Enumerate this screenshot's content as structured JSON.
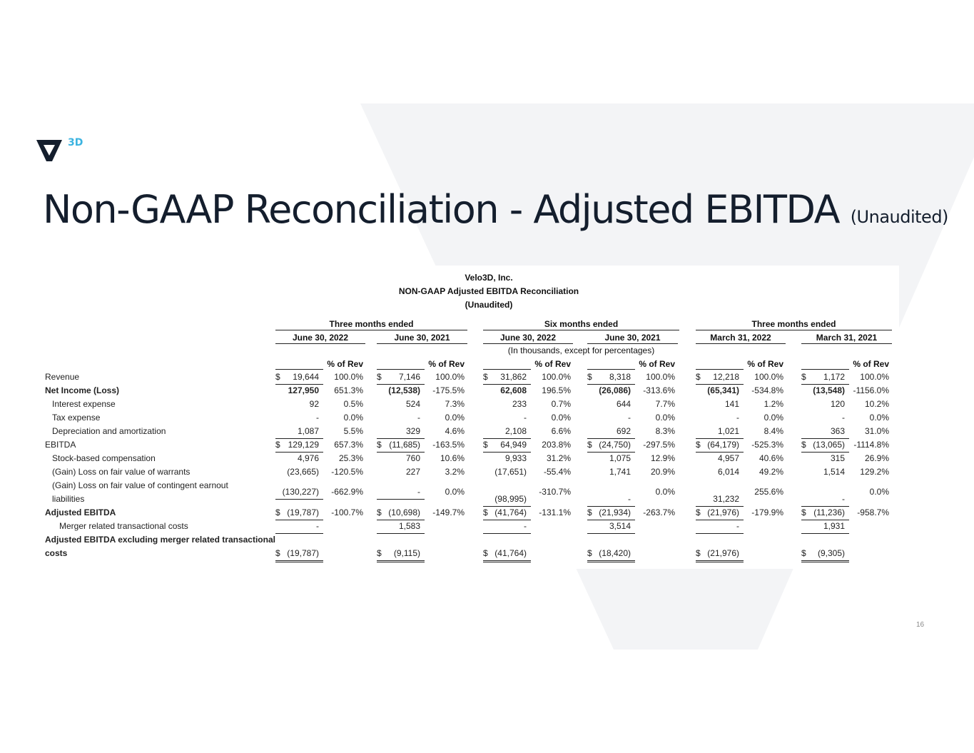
{
  "logo": {
    "text": "3D",
    "accent": "#3bb3e0",
    "mark_color": "#141e2d"
  },
  "title": {
    "main": "Non-GAAP Reconciliation - Adjusted EBITDA",
    "sub": "(Unaudited)"
  },
  "page_number": "16",
  "table": {
    "company": "Velo3D, Inc.",
    "heading": "NON-GAAP Adjusted EBITDA Reconciliation",
    "subheading": "(Unaudited)",
    "groups": [
      "Three months ended",
      "Six months ended",
      "Three months ended"
    ],
    "periods": [
      "June 30, 2022",
      "June 30, 2021",
      "June 30, 2022",
      "June 30, 2021",
      "March 31, 2022",
      "March 31, 2021"
    ],
    "units_note": "(In thousands, except for percentages)",
    "pct_header": "% of Rev",
    "rows": [
      {
        "label": "Revenue",
        "values": [
          "$ 19,644",
          "100.0%",
          "$ 7,146",
          "100.0%",
          "$ 31,862",
          "100.0%",
          "$ 8,318",
          "100.0%",
          "$ 12,218",
          "100.0%",
          "$ 1,172",
          "100.0%"
        ]
      },
      {
        "label": "Net Income (Loss)",
        "bold": true,
        "values": [
          "127,950",
          "651.3%",
          "(12,538)",
          "-175.5%",
          "62,608",
          "196.5%",
          "(26,086)",
          "-313.6%",
          "(65,341)",
          "-534.8%",
          "(13,548)",
          "-1156.0%"
        ]
      },
      {
        "label": "Interest expense",
        "indent": 1,
        "values": [
          "92",
          "0.5%",
          "524",
          "7.3%",
          "233",
          "0.7%",
          "644",
          "7.7%",
          "141",
          "1.2%",
          "120",
          "10.2%"
        ]
      },
      {
        "label": "Tax expense",
        "indent": 1,
        "values": [
          "-",
          "0.0%",
          "-",
          "0.0%",
          "-",
          "0.0%",
          "-",
          "0.0%",
          "-",
          "0.0%",
          "-",
          "0.0%"
        ]
      },
      {
        "label": "Depreciation and amortization",
        "indent": 1,
        "values": [
          "1,087",
          "5.5%",
          "329",
          "4.6%",
          "2,108",
          "6.6%",
          "692",
          "8.3%",
          "1,021",
          "8.4%",
          "363",
          "31.0%"
        ]
      },
      {
        "label": "EBITDA",
        "values": [
          "$ 129,129",
          "657.3%",
          "$ (11,685)",
          "-163.5%",
          "$ 64,949",
          "203.8%",
          "$ (24,750)",
          "-297.5%",
          "$ (64,179)",
          "-525.3%",
          "$ (13,065)",
          "-1114.8%"
        ]
      },
      {
        "label": "Stock-based compensation",
        "indent": 1,
        "values": [
          "4,976",
          "25.3%",
          "760",
          "10.6%",
          "9,933",
          "31.2%",
          "1,075",
          "12.9%",
          "4,957",
          "40.6%",
          "315",
          "26.9%"
        ]
      },
      {
        "label": "(Gain) Loss on fair value of warrants",
        "indent": 1,
        "values": [
          "(23,665)",
          "-120.5%",
          "227",
          "3.2%",
          "(17,651)",
          "-55.4%",
          "1,741",
          "20.9%",
          "6,014",
          "49.2%",
          "1,514",
          "129.2%"
        ]
      },
      {
        "label": "(Gain) Loss on fair value of contingent earnout liabilities",
        "label_lines": [
          "(Gain) Loss on fair value of contingent earnout",
          "liabilities"
        ],
        "indent": 1,
        "values": [
          "(130,227)",
          "-662.9%",
          "-",
          "0.0%",
          "(98,995)",
          "-310.7%",
          "-",
          "0.0%",
          "31,232",
          "255.6%",
          "-",
          "0.0%"
        ]
      },
      {
        "label": "Adjusted EBITDA",
        "bold": true,
        "values": [
          "$ (19,787)",
          "-100.7%",
          "$ (10,698)",
          "-149.7%",
          "$ (41,764)",
          "-131.1%",
          "$ (21,934)",
          "-263.7%",
          "$ (21,976)",
          "-179.9%",
          "$ (11,236)",
          "-958.7%"
        ]
      },
      {
        "label": "Merger related transactional costs",
        "indent": 2,
        "values": [
          "-",
          "",
          "1,583",
          "",
          "-",
          "",
          "3,514",
          "",
          "-",
          "",
          "1,931",
          ""
        ]
      },
      {
        "label": "Adjusted EBITDA excluding merger related transactional costs",
        "label_lines": [
          "Adjusted EBITDA excluding merger related transactional",
          "costs"
        ],
        "bold": true,
        "values": [
          "$ (19,787)",
          "",
          "$ (9,115)",
          "",
          "$ (41,764)",
          "",
          "$ (18,420)",
          "",
          "$ (21,976)",
          "",
          "$ (9,305)",
          ""
        ]
      }
    ]
  }
}
